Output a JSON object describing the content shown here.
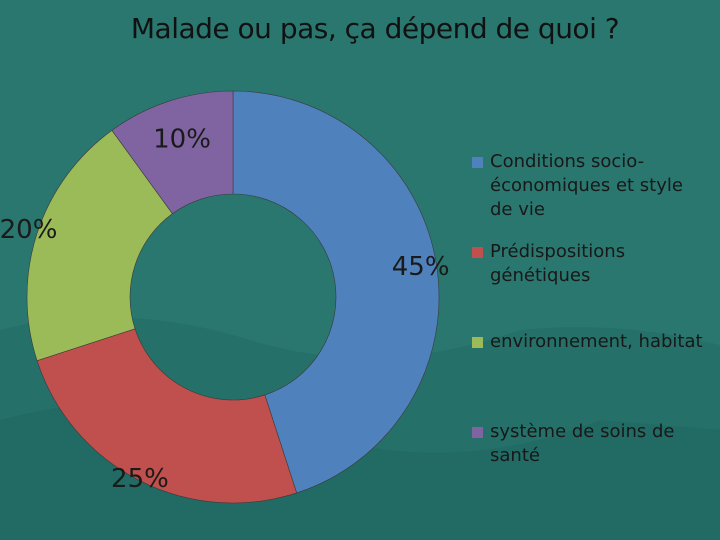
{
  "title": "Malade ou pas, ça dépend de quoi ?",
  "colors": {
    "background": "#2a7770",
    "label_text": "#1a1a1a"
  },
  "chart_data": {
    "type": "pie",
    "style": "donut",
    "title": "Malade ou pas, ça dépend de quoi ?",
    "legend_position": "right",
    "slices": [
      {
        "label": "Conditions socio-économiques et style de vie",
        "value": 45,
        "value_label": "45%",
        "color": "#4f81bd"
      },
      {
        "label": "Prédispositions génétiques",
        "value": 25,
        "value_label": "25%",
        "color": "#c0504d"
      },
      {
        "label": "environnement, habitat",
        "value": 20,
        "value_label": "20%",
        "color": "#9bbb59"
      },
      {
        "label": "système de soins de santé",
        "value": 10,
        "value_label": "10%",
        "color": "#8064a2"
      }
    ]
  }
}
